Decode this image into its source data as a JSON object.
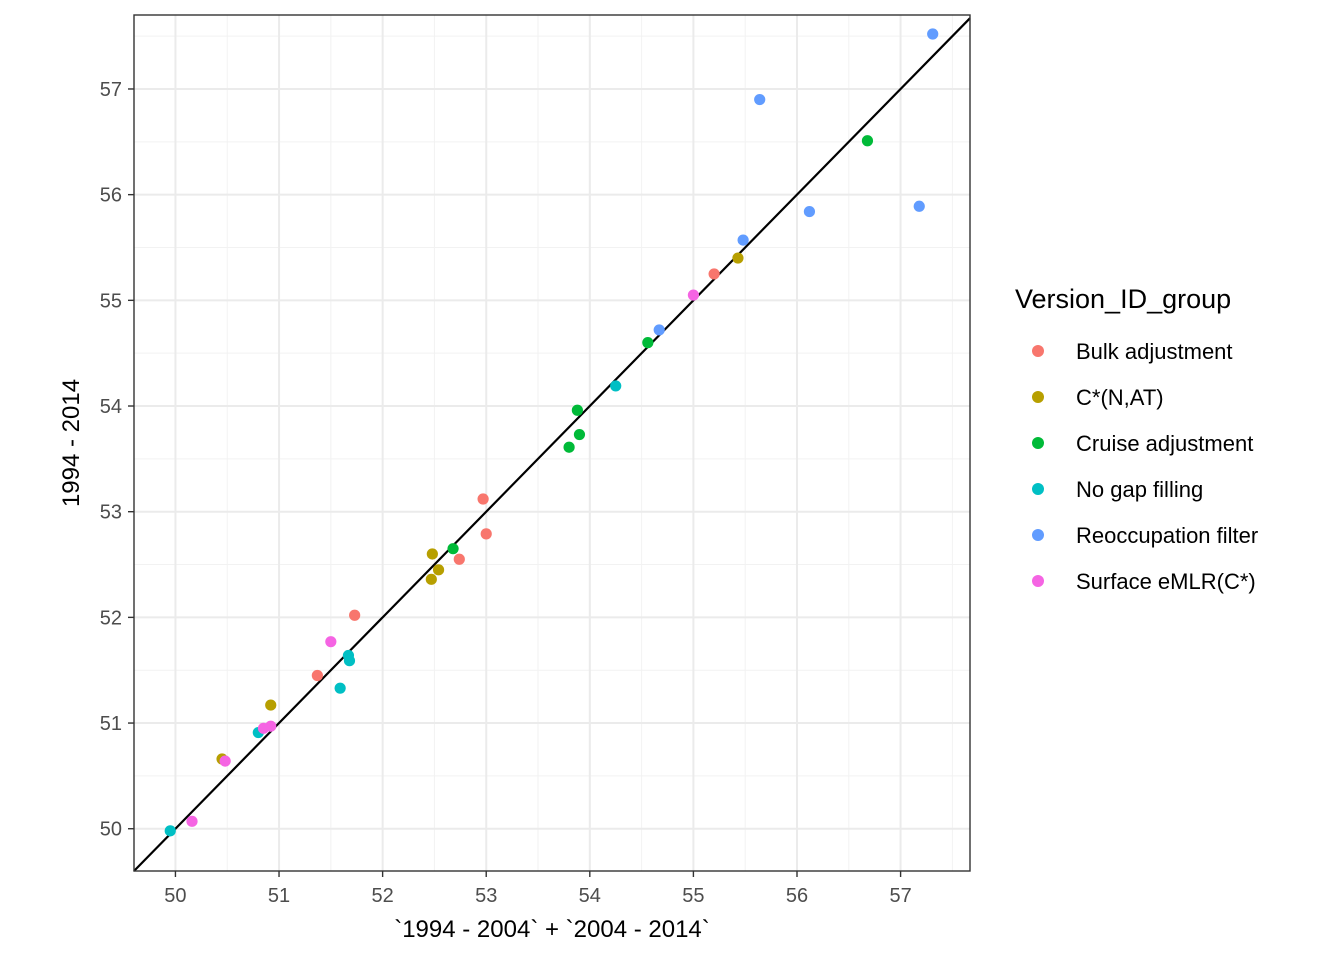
{
  "chart_data": {
    "type": "scatter",
    "title": "",
    "xlabel": "`1994 - 2004` + `2004 - 2014`",
    "ylabel": "1994 - 2014",
    "xlim": [
      49.6,
      57.67
    ],
    "ylim": [
      49.6,
      57.7
    ],
    "x_ticks": [
      "50",
      "51",
      "52",
      "53",
      "54",
      "55",
      "56",
      "57"
    ],
    "y_ticks": [
      "50",
      "51",
      "52",
      "53",
      "54",
      "55",
      "56",
      "57"
    ],
    "grid": true,
    "reference_line": {
      "type": "identity",
      "intercept": 0,
      "slope": 1,
      "color": "#000000"
    },
    "legend": {
      "title": "Version_ID_group",
      "position": "right"
    },
    "series": [
      {
        "name": "Bulk adjustment",
        "color": "#F8766D",
        "points": [
          [
            55.2,
            55.25
          ],
          [
            52.97,
            53.12
          ],
          [
            53.0,
            52.79
          ],
          [
            52.74,
            52.55
          ],
          [
            51.73,
            52.02
          ],
          [
            51.37,
            51.45
          ]
        ]
      },
      {
        "name": "C*(N,AT)",
        "color": "#B79F00",
        "points": [
          [
            55.43,
            55.4
          ],
          [
            52.48,
            52.6
          ],
          [
            52.54,
            52.45
          ],
          [
            52.47,
            52.36
          ],
          [
            50.92,
            51.17
          ],
          [
            50.45,
            50.66
          ]
        ]
      },
      {
        "name": "Cruise adjustment",
        "color": "#00BA38",
        "points": [
          [
            56.68,
            56.51
          ],
          [
            54.56,
            54.6
          ],
          [
            53.88,
            53.96
          ],
          [
            53.9,
            53.73
          ],
          [
            53.8,
            53.61
          ],
          [
            52.68,
            52.65
          ]
        ]
      },
      {
        "name": "No gap filling",
        "color": "#00BFC4",
        "points": [
          [
            54.25,
            54.19
          ],
          [
            51.67,
            51.64
          ],
          [
            51.68,
            51.59
          ],
          [
            51.59,
            51.33
          ],
          [
            50.8,
            50.91
          ],
          [
            49.95,
            49.98
          ]
        ]
      },
      {
        "name": "Reoccupation filter",
        "color": "#619CFF",
        "points": [
          [
            57.31,
            57.52
          ],
          [
            55.64,
            56.9
          ],
          [
            56.12,
            55.84
          ],
          [
            57.18,
            55.89
          ],
          [
            55.48,
            55.57
          ],
          [
            54.67,
            54.72
          ]
        ]
      },
      {
        "name": "Surface eMLR(C*)",
        "color": "#F564E3",
        "points": [
          [
            55.0,
            55.05
          ],
          [
            51.5,
            51.77
          ],
          [
            50.92,
            50.97
          ],
          [
            50.85,
            50.95
          ],
          [
            50.48,
            50.64
          ],
          [
            50.16,
            50.07
          ]
        ]
      }
    ]
  }
}
